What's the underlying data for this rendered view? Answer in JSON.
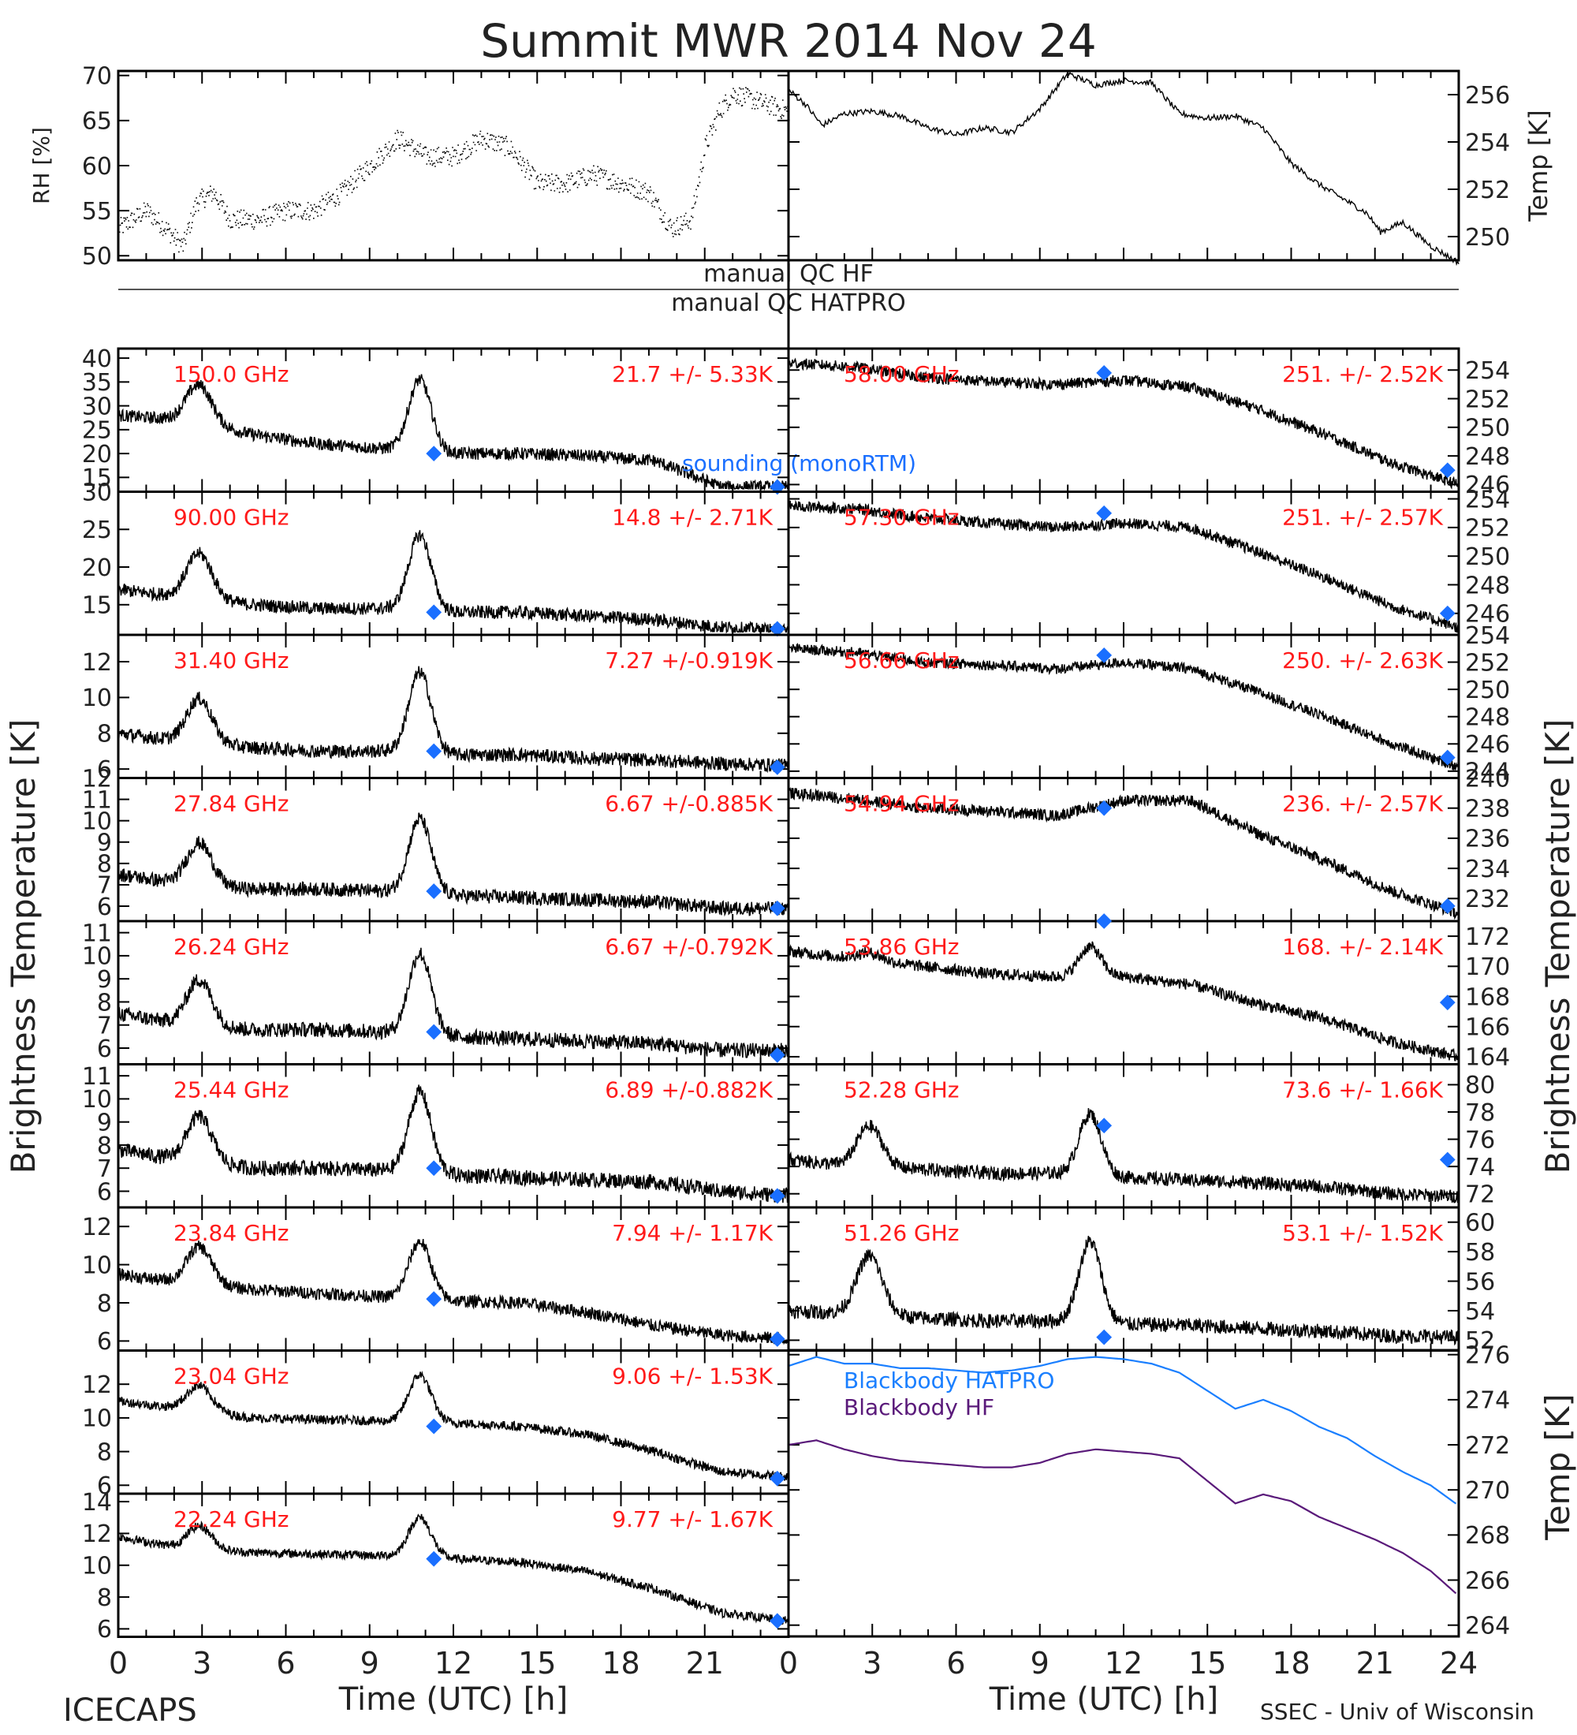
{
  "title": "Summit MWR 2014 Nov 24",
  "footer": {
    "left": "ICECAPS",
    "right": "SSEC - Univ of Wisconsin",
    "xlabel_left": "Time (UTC) [h]",
    "xlabel_right": "Time (UTC) [h]"
  },
  "ylabels": {
    "rh": "RH [%]",
    "temp": "Temp [K]",
    "bt_left": "Brightness Temperature [K]",
    "bt_right": "Brightness Temperature [K]",
    "bb": "Temp [K]"
  },
  "qc": {
    "hf": "manual QC HF",
    "hatpro": "manual QC HATPRO"
  },
  "colors": {
    "trace": "#000000",
    "label": "#ff1a1a",
    "sounding": "#1a6fff",
    "bb_hatpro": "#1a7fff",
    "bb_hf": "#5a1a7a"
  },
  "chart_data": {
    "type": "scatter",
    "xlim": [
      0,
      24
    ],
    "xticks": [
      0,
      3,
      6,
      9,
      12,
      15,
      18,
      21,
      24
    ],
    "xtick_labels_left": [
      "0",
      "3",
      "6",
      "9",
      "12",
      "15",
      "18",
      "21"
    ],
    "xtick_labels_right": [
      "0",
      "3",
      "6",
      "9",
      "12",
      "15",
      "18",
      "21",
      "24"
    ],
    "met": {
      "rh": {
        "ylim": [
          49.5,
          70.5
        ],
        "ticks": [
          50,
          55,
          60,
          65,
          70
        ],
        "x": [
          0,
          1,
          1.7,
          2.3,
          2.8,
          3.4,
          4,
          5,
          6,
          7,
          8,
          9,
          10,
          11,
          12,
          13,
          14,
          15,
          16,
          17,
          18,
          19,
          19.8,
          20.5,
          21,
          21.5,
          22,
          23,
          24
        ],
        "y": [
          53,
          55,
          53,
          51,
          56,
          57,
          54,
          54,
          55,
          55,
          57,
          60,
          63,
          61,
          61,
          63,
          62,
          58,
          58,
          59,
          58,
          57,
          53,
          54,
          62,
          66,
          68,
          67,
          66
        ]
      },
      "temp": {
        "ylim": [
          249,
          257
        ],
        "ticks": [
          250,
          252,
          254,
          256
        ],
        "x": [
          0,
          0.6,
          1.2,
          2,
          3,
          4,
          5,
          6,
          7,
          8,
          9,
          10,
          11,
          12,
          13,
          14,
          15,
          16,
          17,
          18,
          19,
          20,
          20.7,
          21.2,
          22,
          23,
          24
        ],
        "y": [
          256.2,
          255.6,
          254.7,
          255.2,
          255.3,
          255.1,
          254.6,
          254.3,
          254.6,
          254.4,
          255.4,
          256.9,
          256.4,
          256.6,
          256.5,
          255.2,
          255.0,
          255.1,
          254.6,
          253.1,
          252.2,
          251.5,
          251.0,
          250.2,
          250.6,
          249.6,
          248.9
        ]
      }
    },
    "left_channels": [
      {
        "freq": "150.0 GHz",
        "stat": "21.7 +/-  5.33K",
        "ylim": [
          12,
          42
        ],
        "ticks": [
          15,
          20,
          25,
          30,
          35,
          40
        ],
        "base": [
          28,
          27,
          24,
          22,
          21,
          20,
          20,
          19.5,
          18.5,
          13,
          13
        ],
        "bump1": 8,
        "bump2": 15,
        "noise": 1.2,
        "sounding": [
          [
            11.3,
            20
          ],
          [
            23.6,
            13
          ]
        ]
      },
      {
        "freq": "90.00 GHz",
        "stat": "14.8 +/-  2.71K",
        "ylim": [
          11,
          30
        ],
        "ticks": [
          15,
          20,
          25,
          30
        ],
        "base": [
          17,
          16,
          15,
          14.5,
          14.5,
          14,
          14,
          13.5,
          13,
          12,
          11.5
        ],
        "bump1": 6,
        "bump2": 10,
        "noise": 0.8,
        "sounding": [
          [
            11.3,
            14
          ],
          [
            23.6,
            11.8
          ]
        ]
      },
      {
        "freq": "31.40 GHz",
        "stat": "7.27 +/-0.919K",
        "ylim": [
          5.5,
          13.5
        ],
        "ticks": [
          6,
          8,
          10,
          12
        ],
        "base": [
          8,
          7.5,
          7.2,
          7,
          7,
          6.8,
          6.8,
          6.6,
          6.5,
          6.3,
          6.2
        ],
        "bump1": 2.5,
        "bump2": 4.5,
        "noise": 0.35,
        "sounding": [
          [
            11.3,
            7
          ],
          [
            23.6,
            6.1
          ]
        ]
      },
      {
        "freq": "27.84 GHz",
        "stat": "6.67 +/-0.885K",
        "ylim": [
          5.3,
          12
        ],
        "ticks": [
          6,
          7,
          8,
          9,
          10,
          11,
          12
        ],
        "base": [
          7.5,
          7,
          6.8,
          6.8,
          6.7,
          6.5,
          6.4,
          6.3,
          6.2,
          5.9,
          5.9
        ],
        "bump1": 2,
        "bump2": 3.5,
        "noise": 0.3,
        "sounding": [
          [
            11.3,
            6.7
          ],
          [
            23.6,
            5.9
          ]
        ]
      },
      {
        "freq": "26.24 GHz",
        "stat": "6.67 +/-0.792K",
        "ylim": [
          5.3,
          11.5
        ],
        "ticks": [
          6,
          7,
          8,
          9,
          10,
          11
        ],
        "base": [
          7.5,
          7,
          6.8,
          6.8,
          6.7,
          6.5,
          6.4,
          6.3,
          6.2,
          5.9,
          5.9
        ],
        "bump1": 2,
        "bump2": 3.5,
        "noise": 0.3,
        "sounding": [
          [
            11.3,
            6.7
          ],
          [
            23.6,
            5.7
          ]
        ]
      },
      {
        "freq": "25.44 GHz",
        "stat": "6.89 +/-0.882K",
        "ylim": [
          5.3,
          11.5
        ],
        "ticks": [
          6,
          7,
          8,
          9,
          10,
          11
        ],
        "base": [
          7.8,
          7.3,
          7,
          7,
          6.9,
          6.7,
          6.6,
          6.5,
          6.4,
          6,
          5.8
        ],
        "bump1": 2,
        "bump2": 3.5,
        "noise": 0.3,
        "sounding": [
          [
            11.3,
            7
          ],
          [
            23.6,
            5.8
          ]
        ]
      },
      {
        "freq": "23.84 GHz",
        "stat": "7.94 +/- 1.17K",
        "ylim": [
          5.5,
          13
        ],
        "ticks": [
          6,
          8,
          10,
          12
        ],
        "base": [
          9.5,
          9,
          8.7,
          8.5,
          8.3,
          8.1,
          8,
          7.5,
          6.8,
          6.3,
          6.1
        ],
        "bump1": 2,
        "bump2": 3,
        "noise": 0.3,
        "sounding": [
          [
            11.3,
            8.2
          ],
          [
            23.6,
            6.1
          ]
        ]
      },
      {
        "freq": "23.04 GHz",
        "stat": "9.06 +/- 1.53K",
        "ylim": [
          5.5,
          14
        ],
        "ticks": [
          6,
          8,
          10,
          12
        ],
        "base": [
          11,
          10.5,
          10,
          9.9,
          9.8,
          9.7,
          9.5,
          9,
          8,
          6.8,
          6.5
        ],
        "bump1": 1.5,
        "bump2": 2.8,
        "noise": 0.25,
        "sounding": [
          [
            11.3,
            9.5
          ],
          [
            23.6,
            6.4
          ]
        ]
      },
      {
        "freq": "22.24 GHz",
        "stat": "9.77 +/- 1.67K",
        "ylim": [
          5.5,
          14.5
        ],
        "ticks": [
          6,
          8,
          10,
          12,
          14
        ],
        "base": [
          11.8,
          11,
          10.8,
          10.7,
          10.6,
          10.4,
          10.2,
          9.6,
          8.5,
          7,
          6.5
        ],
        "bump1": 1.5,
        "bump2": 2.5,
        "noise": 0.25,
        "sounding": [
          [
            11.3,
            10.4
          ],
          [
            23.6,
            6.5
          ]
        ]
      }
    ],
    "right_channels": [
      {
        "freq": "58.00 GHz",
        "stat": "251. +/- 2.52K",
        "ylim": [
          245.5,
          255.5
        ],
        "ticks": [
          246,
          248,
          250,
          252,
          254
        ],
        "base": [
          254.5,
          254.2,
          253.5,
          253.2,
          253,
          253.3,
          252.8,
          251.3,
          249.5,
          247.5,
          246
        ],
        "bump1": 0,
        "bump2": 0,
        "noise": 0.35,
        "sounding": [
          [
            11.3,
            253.8
          ],
          [
            23.6,
            247
          ]
        ]
      },
      {
        "freq": "57.30 GHz",
        "stat": "251. +/- 2.57K",
        "ylim": [
          244.5,
          254.5
        ],
        "ticks": [
          246,
          248,
          250,
          252,
          254
        ],
        "base": [
          253.5,
          253.3,
          252.7,
          252.3,
          252,
          252.3,
          252,
          250.3,
          248.5,
          246.5,
          245
        ],
        "bump1": 0,
        "bump2": 0,
        "noise": 0.35,
        "sounding": [
          [
            11.3,
            253
          ],
          [
            23.6,
            246
          ]
        ]
      },
      {
        "freq": "56.66 GHz",
        "stat": "250. +/- 2.63K",
        "ylim": [
          243.5,
          254
        ],
        "ticks": [
          244,
          246,
          248,
          250,
          252,
          254
        ],
        "base": [
          253,
          252.7,
          252,
          251.8,
          251.5,
          252,
          251.5,
          249.8,
          248,
          246,
          244.3
        ],
        "bump1": 0,
        "bump2": 0,
        "noise": 0.35,
        "sounding": [
          [
            11.3,
            252.5
          ],
          [
            23.6,
            245
          ]
        ]
      },
      {
        "freq": "54.94 GHz",
        "stat": "236. +/- 2.57K",
        "ylim": [
          230.5,
          240
        ],
        "ticks": [
          232,
          234,
          236,
          238,
          240
        ],
        "base": [
          239,
          238.6,
          238,
          237.8,
          237.5,
          238.5,
          238.5,
          236.3,
          234.5,
          232.5,
          231
        ],
        "bump1": 0,
        "bump2": 0,
        "noise": 0.35,
        "sounding": [
          [
            11.3,
            238
          ],
          [
            23.6,
            231.5
          ]
        ]
      },
      {
        "freq": "53.86 GHz",
        "stat": "168. +/- 2.14K",
        "ylim": [
          163.5,
          173
        ],
        "ticks": [
          164,
          166,
          168,
          170,
          172
        ],
        "base": [
          171,
          170.5,
          170,
          169.5,
          169.3,
          169.3,
          168.8,
          167.5,
          166.5,
          165,
          164
        ],
        "bump1": 0.5,
        "bump2": 2,
        "noise": 0.35,
        "sounding": [
          [
            11.3,
            173
          ],
          [
            23.6,
            167.6
          ]
        ]
      },
      {
        "freq": "52.28 GHz",
        "stat": "73.6 +/- 1.66K",
        "ylim": [
          71,
          81.5
        ],
        "ticks": [
          72,
          74,
          76,
          78,
          80
        ],
        "base": [
          74.5,
          74,
          73.8,
          73.5,
          73.5,
          73.2,
          73,
          72.8,
          72.5,
          72,
          71.8
        ],
        "bump1": 3,
        "bump2": 4.5,
        "noise": 0.45,
        "sounding": [
          [
            11.3,
            77
          ],
          [
            23.6,
            74.5
          ]
        ]
      },
      {
        "freq": "51.26 GHz",
        "stat": "53.1 +/- 1.52K",
        "ylim": [
          51.3,
          61
        ],
        "ticks": [
          52,
          54,
          56,
          58,
          60
        ],
        "base": [
          54,
          53.8,
          53.5,
          53.3,
          53.3,
          53.1,
          53,
          52.8,
          52.6,
          52.3,
          52.2
        ],
        "bump1": 4,
        "bump2": 5.5,
        "noise": 0.45,
        "sounding": [
          [
            11.3,
            52.2
          ]
        ]
      }
    ],
    "blackbody": {
      "ylim": [
        263.5,
        276.2
      ],
      "ticks": [
        264,
        266,
        268,
        270,
        272,
        274,
        276
      ],
      "legend": [
        "Blackbody HATPRO",
        "Blackbody HF"
      ],
      "x": [
        0,
        1,
        2,
        3,
        4,
        5,
        6,
        7,
        8,
        9,
        10,
        11,
        12,
        13,
        14,
        15,
        16,
        17,
        18,
        19,
        20,
        21,
        22,
        23,
        24
      ],
      "hatpro": [
        275.5,
        275.9,
        275.6,
        275.6,
        275.4,
        275.4,
        275.3,
        275.2,
        275.3,
        275.5,
        275.8,
        275.9,
        275.8,
        275.6,
        275.2,
        274.4,
        273.6,
        274.0,
        273.5,
        272.8,
        272.3,
        271.5,
        270.8,
        270.2,
        269.3
      ],
      "hf": [
        272.0,
        272.2,
        271.8,
        271.5,
        271.3,
        271.2,
        271.1,
        271.0,
        271.0,
        271.2,
        271.6,
        271.8,
        271.7,
        271.6,
        271.4,
        270.4,
        269.4,
        269.8,
        269.5,
        268.8,
        268.3,
        267.8,
        267.2,
        266.4,
        265.3
      ]
    }
  }
}
